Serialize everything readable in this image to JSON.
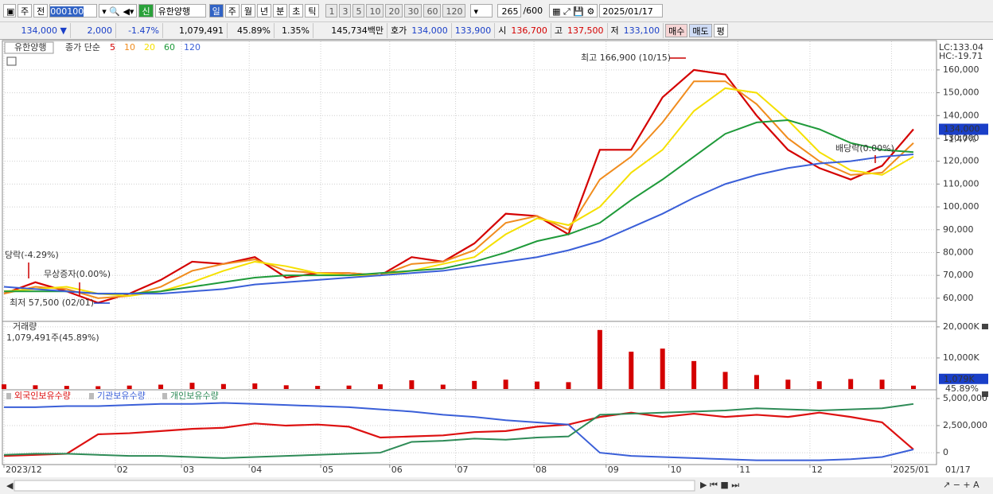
{
  "toolbar": {
    "market": "주",
    "scope": "전",
    "code": "000100",
    "badge": "신",
    "name": "유한양행",
    "periods": [
      "일",
      "주",
      "월",
      "년",
      "분",
      "초",
      "틱"
    ],
    "intervals": [
      "1",
      "3",
      "5",
      "10",
      "20",
      "30",
      "60",
      "120"
    ],
    "count": "265",
    "max": "/600",
    "date": "2025/01/17"
  },
  "quote": {
    "price": "134,000 ▼",
    "change": "2,000",
    "change_pct": "-1.47%",
    "volume": "1,079,491",
    "volume_ratio": "45.89%",
    "turnover": "1.35%",
    "amount": "145,734백만",
    "bid_ask_label": "호가",
    "ask": "134,000",
    "bid": "133,900",
    "open_label": "시",
    "open": "136,700",
    "high_label": "고",
    "high": "137,500",
    "low_label": "저",
    "low": "133,100",
    "buy": "매수",
    "sell": "매도",
    "avg": "평"
  },
  "chart_data": [
    {
      "type": "line",
      "title": "유한양행",
      "legend_label": "종가 단순",
      "xlim": [
        0,
        29
      ],
      "series": [
        {
          "name": "5",
          "color": "#d40000",
          "values": [
            62000,
            67000,
            63000,
            58000,
            62000,
            68000,
            76000,
            75000,
            78000,
            69000,
            71000,
            71000,
            70000,
            78000,
            76000,
            84000,
            97000,
            96000,
            88000,
            125000,
            125000,
            148000,
            160000,
            158000,
            140000,
            125000,
            117000,
            112000,
            118000,
            134000
          ]
        },
        {
          "name": "10",
          "color": "#f08c1e",
          "values": [
            62000,
            65000,
            64000,
            60000,
            61000,
            65000,
            72000,
            75000,
            77000,
            72000,
            71000,
            71000,
            70000,
            75000,
            76000,
            81000,
            93000,
            96000,
            90000,
            112000,
            122000,
            137000,
            155000,
            155000,
            145000,
            130000,
            120000,
            114000,
            115000,
            128000
          ]
        },
        {
          "name": "20",
          "color": "#f5e000",
          "values": [
            63000,
            64000,
            65000,
            62000,
            61000,
            63000,
            67000,
            72000,
            76000,
            74000,
            71000,
            70000,
            70000,
            72000,
            75000,
            78000,
            88000,
            95000,
            92000,
            100000,
            115000,
            125000,
            142000,
            152000,
            150000,
            138000,
            124000,
            116000,
            114000,
            122000
          ]
        },
        {
          "name": "60",
          "color": "#1f9a3a",
          "values": [
            63000,
            63000,
            63000,
            62000,
            62000,
            63000,
            65000,
            67000,
            69000,
            70000,
            70000,
            70000,
            71000,
            72000,
            73000,
            76000,
            80000,
            85000,
            88000,
            93000,
            103000,
            112000,
            122000,
            132000,
            137000,
            138000,
            134000,
            128000,
            125000,
            124000
          ]
        },
        {
          "name": "120",
          "color": "#3a5fd8",
          "values": [
            65000,
            64000,
            63000,
            62000,
            62000,
            62000,
            63000,
            64000,
            66000,
            67000,
            68000,
            69000,
            70000,
            71000,
            72000,
            74000,
            76000,
            78000,
            81000,
            85000,
            91000,
            97000,
            104000,
            110000,
            114000,
            117000,
            119000,
            120000,
            122000,
            123000
          ]
        }
      ],
      "ylim": [
        50200,
        172500
      ],
      "yticks": [
        {
          "value": 60000,
          "label": "60,000"
        },
        {
          "value": 70000,
          "label": "70,000"
        },
        {
          "value": 80000,
          "label": "80,000"
        },
        {
          "value": 90000,
          "label": "90,000"
        },
        {
          "value": 100000,
          "label": "100,000"
        },
        {
          "value": 110000,
          "label": "110,000"
        },
        {
          "value": 120000,
          "label": "120,000"
        },
        {
          "value": 130000,
          "label": "130,000"
        },
        {
          "value": 140000,
          "label": "140,000"
        },
        {
          "value": 150000,
          "label": "150,000"
        },
        {
          "value": 160000,
          "label": "160,000"
        }
      ],
      "grid": true,
      "annotations": [
        "최고 166,900 (10/15)",
        "최저 57,500 (02/01)",
        "당락(-4.29%)",
        "무상증자(0.00%)",
        "배당락(0.00%)"
      ],
      "lc": "LC:133.04",
      "hc": "HC:-19.71",
      "last_price": "134,000",
      "last_change": "-1.47%"
    },
    {
      "type": "bar",
      "title": "거래량",
      "subtitle": "1,079,491주(45.89%)",
      "color": "#d40000",
      "xlim": [
        0,
        29
      ],
      "values": [
        1500,
        1200,
        1000,
        900,
        1100,
        1400,
        2000,
        1600,
        1800,
        1200,
        1000,
        1100,
        1500,
        2800,
        1400,
        2600,
        3000,
        2400,
        2200,
        19000,
        12000,
        13000,
        9000,
        5500,
        4500,
        3000,
        2500,
        3200,
        3000,
        1079
      ],
      "ylim": [
        0,
        21000
      ],
      "yticks": [
        {
          "value": 10000,
          "label": "10,000K"
        },
        {
          "value": 20000,
          "label": "20,000K"
        }
      ],
      "last_label": "1,079K",
      "last_ratio": "45.89%"
    },
    {
      "type": "line",
      "xlim": [
        0,
        29
      ],
      "series": [
        {
          "name": "외국인보유수량",
          "color": "#dd1111",
          "values": [
            -300000,
            -200000,
            -100000,
            1700000,
            1800000,
            2000000,
            2200000,
            2300000,
            2700000,
            2500000,
            2600000,
            2400000,
            1400000,
            1500000,
            1600000,
            1900000,
            2000000,
            2400000,
            2600000,
            3300000,
            3700000,
            3300000,
            3600000,
            3300000,
            3500000,
            3300000,
            3700000,
            3300000,
            2800000,
            300000
          ]
        },
        {
          "name": "기관보유수량",
          "color": "#3a5fd8",
          "values": [
            4200000,
            4200000,
            4300000,
            4300000,
            4400000,
            4500000,
            4500000,
            4600000,
            4500000,
            4400000,
            4300000,
            4200000,
            4000000,
            3800000,
            3500000,
            3300000,
            3000000,
            2800000,
            2600000,
            0,
            -300000,
            -400000,
            -500000,
            -600000,
            -700000,
            -700000,
            -700000,
            -600000,
            -400000,
            300000
          ]
        },
        {
          "name": "개인보유수량",
          "color": "#2e8b57",
          "values": [
            -200000,
            -100000,
            -100000,
            -200000,
            -300000,
            -300000,
            -400000,
            -500000,
            -400000,
            -300000,
            -200000,
            -100000,
            0,
            1000000,
            1100000,
            1300000,
            1200000,
            1400000,
            1500000,
            3500000,
            3600000,
            3700000,
            3800000,
            3900000,
            4100000,
            4000000,
            3900000,
            4000000,
            4100000,
            4500000
          ]
        }
      ],
      "ylim": [
        -950000,
        5735000
      ],
      "yticks": [
        0,
        {
          "value": 2500000,
          "label": "2,500,000"
        },
        {
          "value": 5000000,
          "label": "5,000,000"
        }
      ],
      "xticks": [
        {
          "value": 0,
          "label": "2023/12"
        },
        {
          "value": 3.55,
          "label": "02"
        },
        {
          "value": 5.66,
          "label": "03"
        },
        {
          "value": 7.82,
          "label": "04"
        },
        {
          "value": 10.1,
          "label": "05"
        },
        {
          "value": 12.3,
          "label": "06"
        },
        {
          "value": 14.4,
          "label": "07"
        },
        {
          "value": 16.9,
          "label": "08"
        },
        {
          "value": 19.2,
          "label": "09"
        },
        {
          "value": 21.2,
          "label": "10"
        },
        {
          "value": 23.4,
          "label": "11"
        },
        {
          "value": 25.7,
          "label": "12"
        },
        {
          "value": 28.3,
          "label": "2025/01"
        }
      ],
      "x_end_label": "01/17"
    }
  ]
}
